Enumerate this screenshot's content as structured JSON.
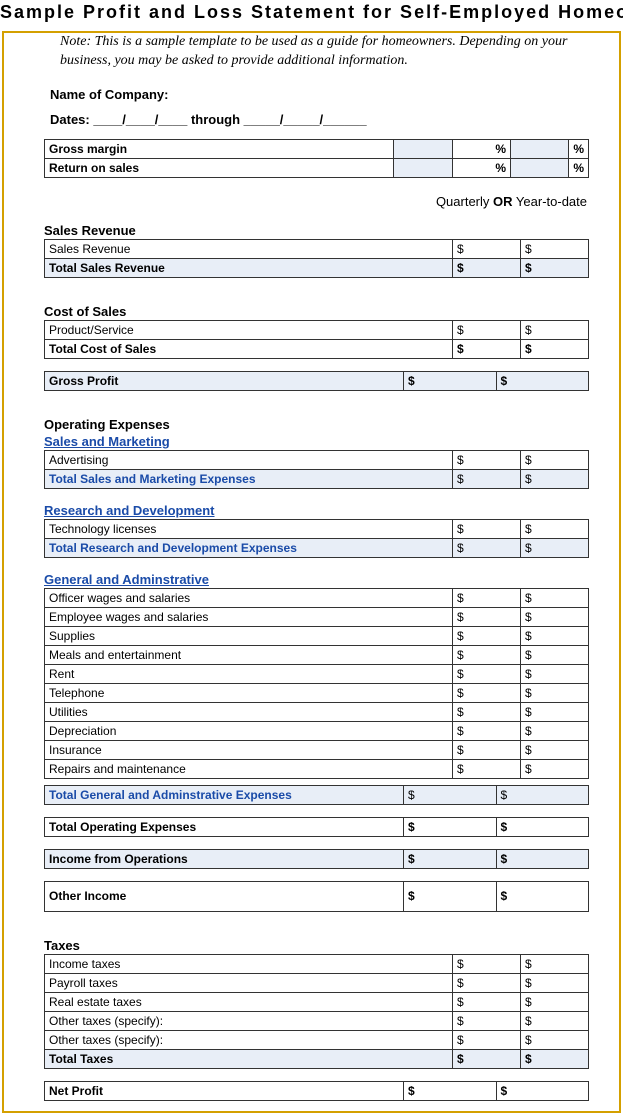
{
  "title": "Sample Profit and Loss Statement for Self-Employed Homeowners",
  "note": "Note: This is a sample template to be used as a guide for homeowners. Depending on your business, you may be asked to provide additional information.",
  "name_label": "Name of Company:",
  "dates_label": "Dates:   ____/____/____  through  _____/_____/______",
  "columns_caption": {
    "left": "Quarterly",
    "or": "OR",
    "right": "Year-to-date"
  },
  "ratios": {
    "gross_margin": {
      "label": "Gross margin",
      "q": "%",
      "y": "%"
    },
    "return_on_sales": {
      "label": "Return on sales",
      "q": "%",
      "y": "%"
    }
  },
  "sections": {
    "sales_revenue": {
      "header": "Sales Revenue",
      "rows": [
        {
          "label": "Sales Revenue",
          "q": "$",
          "y": "$"
        }
      ],
      "total": {
        "label": "Total Sales Revenue",
        "q": "$",
        "y": "$"
      }
    },
    "cost_of_sales": {
      "header": "Cost of Sales",
      "rows": [
        {
          "label": "Product/Service",
          "q": "$",
          "y": "$"
        }
      ],
      "total": {
        "label": "Total Cost of Sales",
        "q": "$",
        "y": "$"
      }
    },
    "gross_profit": {
      "label": "Gross Profit",
      "q": "$",
      "y": "$"
    },
    "operating_expenses_header": "Operating Expenses",
    "sales_marketing": {
      "header": "Sales and Marketing",
      "rows": [
        {
          "label": "Advertising",
          "q": "$",
          "y": "$"
        }
      ],
      "total": {
        "label": "Total Sales and Marketing Expenses",
        "q": "$",
        "y": "$"
      }
    },
    "rnd": {
      "header": "Research and Development",
      "rows": [
        {
          "label": "Technology licenses",
          "q": "$",
          "y": "$"
        }
      ],
      "total": {
        "label": "Total Research and Development Expenses",
        "q": "$",
        "y": "$"
      }
    },
    "ga": {
      "header": "General and Adminstrative",
      "rows": [
        {
          "label": "Officer wages and salaries",
          "q": "$",
          "y": "$"
        },
        {
          "label": "Employee wages and salaries",
          "q": "$",
          "y": "$"
        },
        {
          "label": "Supplies",
          "q": "$",
          "y": "$"
        },
        {
          "label": "Meals and entertainment",
          "q": "$",
          "y": "$"
        },
        {
          "label": "Rent",
          "q": "$",
          "y": "$"
        },
        {
          "label": "Telephone",
          "q": "$",
          "y": "$"
        },
        {
          "label": "Utilities",
          "q": "$",
          "y": "$"
        },
        {
          "label": "Depreciation",
          "q": "$",
          "y": "$"
        },
        {
          "label": "Insurance",
          "q": "$",
          "y": "$"
        },
        {
          "label": "Repairs and maintenance",
          "q": "$",
          "y": "$"
        }
      ],
      "total": {
        "label": "Total General and Adminstrative Expenses",
        "q": "$",
        "y": "$"
      }
    },
    "total_operating_expenses": {
      "label": "Total Operating Expenses",
      "q": "$",
      "y": "$"
    },
    "income_from_operations": {
      "label": "Income from Operations",
      "q": "$",
      "y": "$"
    },
    "other_income": {
      "label": "Other Income",
      "q": "$",
      "y": "$"
    },
    "taxes": {
      "header": "Taxes",
      "rows": [
        {
          "label": "Income taxes",
          "q": "$",
          "y": "$"
        },
        {
          "label": "Payroll taxes",
          "q": "$",
          "y": "$"
        },
        {
          "label": "Real estate taxes",
          "q": "$",
          "y": "$"
        },
        {
          "label": "Other taxes (specify):",
          "q": "$",
          "y": "$"
        },
        {
          "label": "Other taxes (specify):",
          "q": "$",
          "y": "$"
        }
      ],
      "total": {
        "label": "Total Taxes",
        "q": "$",
        "y": "$"
      }
    },
    "net_profit": {
      "label": "Net Profit",
      "q": "$",
      "y": "$"
    }
  },
  "colors": {
    "border": "#d4a000",
    "shade": "#e8eef7",
    "blue": "#1a4ba8",
    "text": "#000000"
  }
}
